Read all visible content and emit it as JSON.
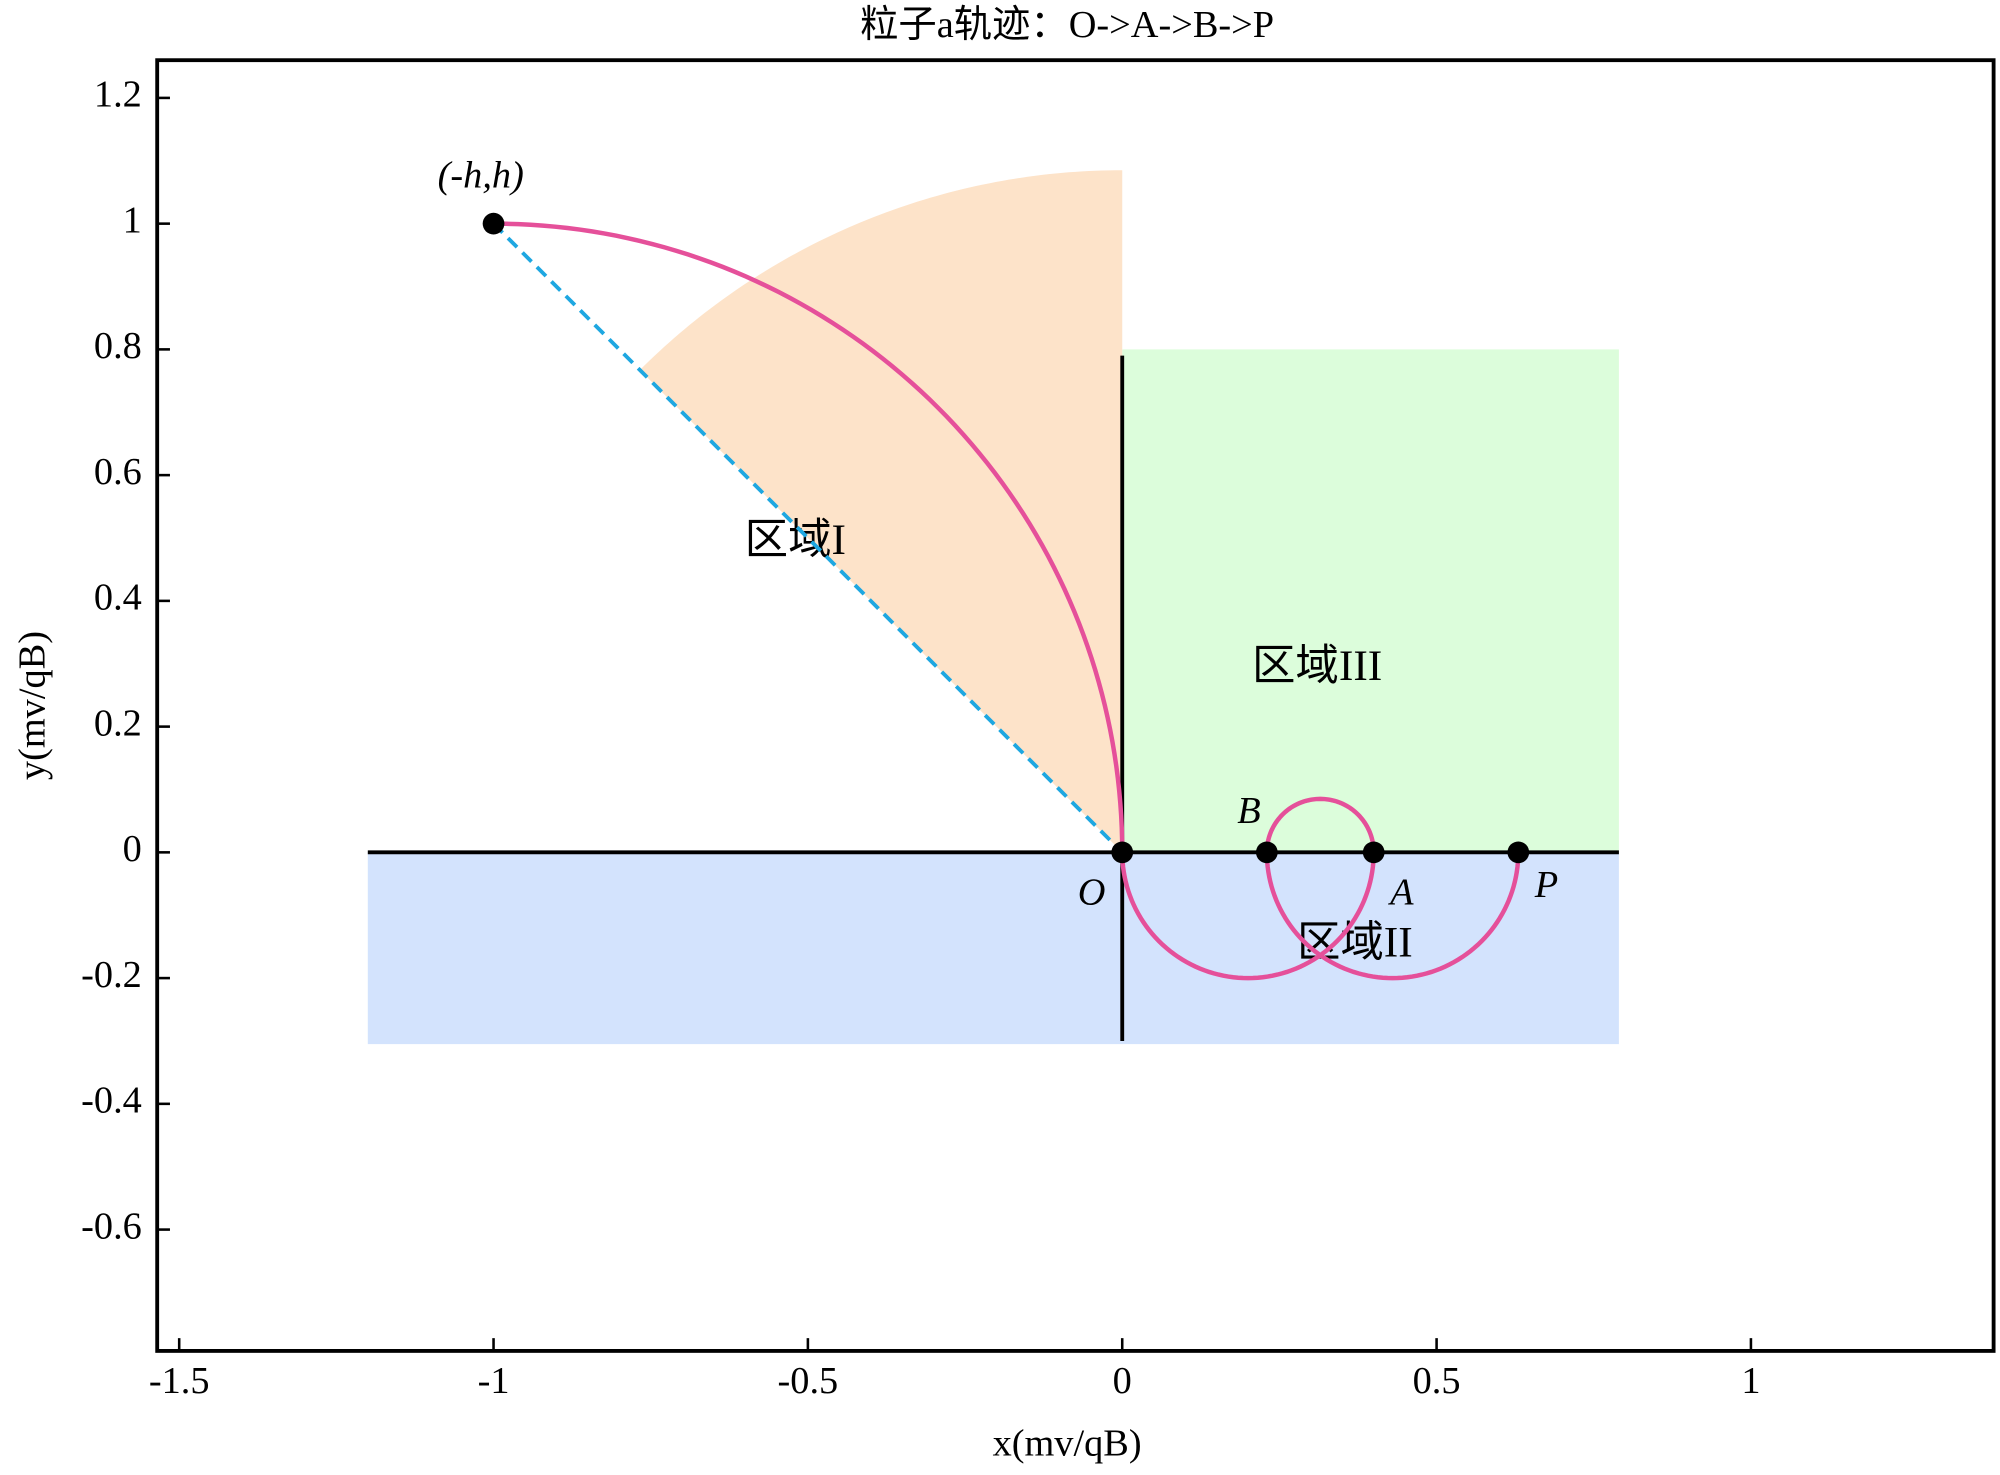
{
  "chart_data": {
    "type": "trajectory",
    "title": "粒子a轨迹：O->A->B->P",
    "x_label": "x(mv/qB)",
    "y_label": "y(mv/qB)",
    "xlim": [
      -1.535,
      1.386
    ],
    "ylim": [
      -0.793,
      1.26
    ],
    "xticks": [
      -1.5,
      -1,
      -0.5,
      0,
      0.5,
      1
    ],
    "yticks": [
      -0.6,
      -0.4,
      -0.2,
      0,
      0.2,
      0.4,
      0.6,
      0.8,
      1,
      1.2
    ],
    "sector": {
      "color": "#fde3c9",
      "center": [
        0,
        0
      ],
      "radius": 1.085,
      "angles": [
        90,
        135
      ]
    },
    "regions": [
      {
        "name": "区域II",
        "color": "#d3e3fd",
        "x": [
          -1.2,
          0.79
        ],
        "y": [
          -0.305,
          0
        ],
        "label_at": [
          0.37,
          -0.15
        ]
      },
      {
        "name": "区域III",
        "color": "#dcfddb",
        "x": [
          0,
          0.79
        ],
        "y": [
          0,
          0.8
        ],
        "label_at": [
          0.31,
          0.29
        ]
      },
      {
        "name": "区域I",
        "label_at": [
          -0.52,
          0.49
        ]
      }
    ],
    "boundaries": [
      {
        "x": [
          -1.2,
          0.79
        ],
        "y": [
          0,
          0
        ]
      },
      {
        "x": [
          0,
          0
        ],
        "y": [
          -0.3,
          0.79
        ]
      }
    ],
    "dashed_line": {
      "color": "#1ea7e1",
      "x": [
        -1,
        0
      ],
      "y": [
        1,
        0
      ]
    },
    "trajectory": {
      "color": "#e5509a",
      "arcs": [
        {
          "center": [
            -1,
            0
          ],
          "radius": 1,
          "angles": [
            90,
            0
          ]
        },
        {
          "center": [
            0.2,
            0
          ],
          "radius": 0.2,
          "angles": [
            180,
            360
          ]
        },
        {
          "center": [
            0.315,
            0
          ],
          "radius": 0.085,
          "angles": [
            0,
            180
          ]
        },
        {
          "center": [
            0.43,
            0
          ],
          "radius": 0.2,
          "angles": [
            180,
            360
          ]
        }
      ]
    },
    "points": [
      {
        "label": "(-h,h)",
        "x": -1,
        "y": 1
      },
      {
        "label": "O",
        "x": 0,
        "y": 0
      },
      {
        "label": "B",
        "x": 0.23,
        "y": 0
      },
      {
        "label": "A",
        "x": 0.4,
        "y": 0
      },
      {
        "label": "P",
        "x": 0.63,
        "y": 0
      }
    ]
  }
}
